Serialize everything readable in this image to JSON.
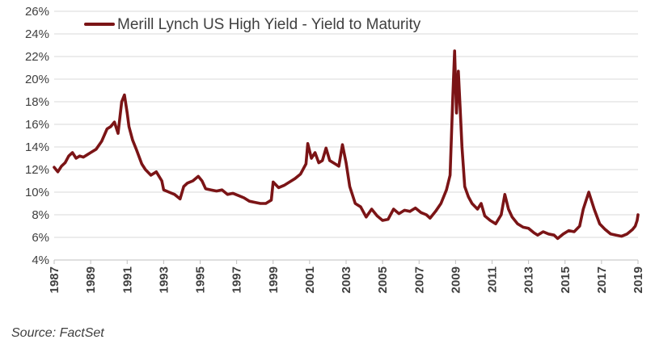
{
  "chart_data": {
    "type": "line",
    "title": "",
    "xlabel": "",
    "ylabel": "",
    "ylim": [
      4,
      26
    ],
    "xlim": [
      1987,
      2019
    ],
    "y_ticks": [
      "4%",
      "6%",
      "8%",
      "10%",
      "12%",
      "14%",
      "16%",
      "18%",
      "20%",
      "22%",
      "24%",
      "26%"
    ],
    "x_ticks": [
      "1987",
      "1989",
      "1991",
      "1993",
      "1995",
      "1997",
      "1999",
      "2001",
      "2003",
      "2005",
      "2007",
      "2009",
      "2011",
      "2013",
      "2015",
      "2017",
      "2019"
    ],
    "grid": "horizontal",
    "legend_position": "top-left",
    "series": [
      {
        "name": "Merill Lynch US High Yield - Yield to Maturity",
        "color": "#7b1416",
        "x": [
          1987.0,
          1987.2,
          1987.4,
          1987.6,
          1987.8,
          1988.0,
          1988.2,
          1988.4,
          1988.6,
          1988.8,
          1989.0,
          1989.3,
          1989.6,
          1989.9,
          1990.1,
          1990.3,
          1990.5,
          1990.7,
          1990.85,
          1991.0,
          1991.1,
          1991.3,
          1991.5,
          1991.8,
          1992.0,
          1992.3,
          1992.6,
          1992.9,
          1993.0,
          1993.3,
          1993.6,
          1993.9,
          1994.1,
          1994.3,
          1994.6,
          1994.9,
          1995.1,
          1995.3,
          1995.6,
          1995.9,
          1996.2,
          1996.5,
          1996.8,
          1997.1,
          1997.4,
          1997.7,
          1998.0,
          1998.3,
          1998.6,
          1998.9,
          1999.0,
          1999.3,
          1999.6,
          1999.9,
          2000.2,
          2000.5,
          2000.8,
          2000.9,
          2001.1,
          2001.3,
          2001.5,
          2001.7,
          2001.9,
          2002.1,
          2002.4,
          2002.6,
          2002.8,
          2003.0,
          2003.2,
          2003.5,
          2003.8,
          2004.1,
          2004.4,
          2004.7,
          2005.0,
          2005.3,
          2005.6,
          2005.9,
          2006.2,
          2006.5,
          2006.8,
          2007.1,
          2007.4,
          2007.6,
          2007.9,
          2008.2,
          2008.5,
          2008.7,
          2008.85,
          2008.95,
          2009.05,
          2009.15,
          2009.25,
          2009.35,
          2009.5,
          2009.7,
          2009.9,
          2010.2,
          2010.4,
          2010.6,
          2010.9,
          2011.2,
          2011.5,
          2011.7,
          2011.9,
          2012.1,
          2012.4,
          2012.7,
          2013.0,
          2013.3,
          2013.5,
          2013.8,
          2014.1,
          2014.4,
          2014.6,
          2014.9,
          2015.2,
          2015.5,
          2015.8,
          2016.0,
          2016.3,
          2016.6,
          2016.9,
          2017.2,
          2017.5,
          2017.8,
          2018.1,
          2018.4,
          2018.7,
          2018.85,
          2018.95,
          2019.0
        ],
        "y": [
          12.2,
          11.8,
          12.3,
          12.6,
          13.2,
          13.5,
          13.0,
          13.2,
          13.1,
          13.3,
          13.5,
          13.8,
          14.5,
          15.6,
          15.8,
          16.2,
          15.2,
          18.0,
          18.6,
          17.0,
          15.8,
          14.6,
          13.8,
          12.5,
          12.0,
          11.5,
          11.8,
          11.0,
          10.2,
          10.0,
          9.8,
          9.4,
          10.5,
          10.8,
          11.0,
          11.4,
          11.0,
          10.3,
          10.2,
          10.1,
          10.2,
          9.8,
          9.9,
          9.7,
          9.5,
          9.2,
          9.1,
          9.0,
          9.0,
          9.3,
          10.9,
          10.4,
          10.6,
          10.9,
          11.2,
          11.6,
          12.5,
          14.3,
          13.0,
          13.5,
          12.6,
          12.8,
          13.9,
          12.8,
          12.5,
          12.3,
          14.2,
          12.6,
          10.5,
          9.0,
          8.7,
          7.8,
          8.5,
          7.9,
          7.5,
          7.6,
          8.5,
          8.1,
          8.4,
          8.3,
          8.6,
          8.2,
          8.0,
          7.7,
          8.3,
          9.0,
          10.2,
          11.5,
          18.5,
          22.5,
          17.0,
          20.7,
          17.5,
          14.0,
          10.5,
          9.6,
          9.0,
          8.5,
          9.0,
          7.9,
          7.5,
          7.2,
          8.0,
          9.8,
          8.5,
          7.8,
          7.2,
          6.9,
          6.8,
          6.4,
          6.2,
          6.5,
          6.3,
          6.2,
          5.9,
          6.3,
          6.6,
          6.5,
          7.0,
          8.5,
          10.0,
          8.5,
          7.2,
          6.7,
          6.3,
          6.2,
          6.1,
          6.3,
          6.7,
          7.0,
          7.5,
          8.0
        ]
      }
    ]
  },
  "source_note": "Source: FactSet"
}
